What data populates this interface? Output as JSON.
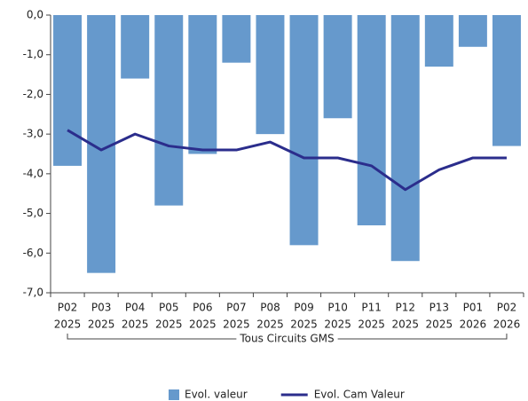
{
  "chart_data": {
    "type": "bar_line",
    "categories": [
      [
        "P02",
        "2025"
      ],
      [
        "P03",
        "2025"
      ],
      [
        "P04",
        "2025"
      ],
      [
        "P05",
        "2025"
      ],
      [
        "P06",
        "2025"
      ],
      [
        "P07",
        "2025"
      ],
      [
        "P08",
        "2025"
      ],
      [
        "P09",
        "2025"
      ],
      [
        "P10",
        "2025"
      ],
      [
        "P11",
        "2025"
      ],
      [
        "P12",
        "2025"
      ],
      [
        "P13",
        "2025"
      ],
      [
        "P01",
        "2026"
      ],
      [
        "P02",
        "2026"
      ]
    ],
    "group_label": "Tous Circuits GMS",
    "series": [
      {
        "name": "Evol.  valeur",
        "type": "bar",
        "color": "#6699cc",
        "values": [
          -3.8,
          -6.5,
          -1.6,
          -4.8,
          -3.5,
          -1.2,
          -3.0,
          -5.8,
          -2.6,
          -5.3,
          -6.2,
          -1.3,
          -0.8,
          -3.3
        ]
      },
      {
        "name": "Evol. Cam Valeur",
        "type": "line",
        "color": "#2b2d8c",
        "values": [
          -2.9,
          -3.4,
          -3.0,
          -3.3,
          -3.4,
          -3.4,
          -3.2,
          -3.6,
          -3.6,
          -3.8,
          -4.4,
          -3.9,
          -3.6,
          -3.6
        ]
      }
    ],
    "ylim": [
      -7,
      0
    ],
    "yticks": [
      {
        "value": 0,
        "label": "0,0"
      },
      {
        "value": -1,
        "label": "-1,0"
      },
      {
        "value": -2,
        "label": "-2,0"
      },
      {
        "value": -3,
        "label": "-3,0"
      },
      {
        "value": -4,
        "label": "-4,0"
      },
      {
        "value": -5,
        "label": "-5,0"
      },
      {
        "value": -6,
        "label": "-6,0"
      },
      {
        "value": -7,
        "label": "-7,0"
      }
    ],
    "legend": "bottom"
  }
}
